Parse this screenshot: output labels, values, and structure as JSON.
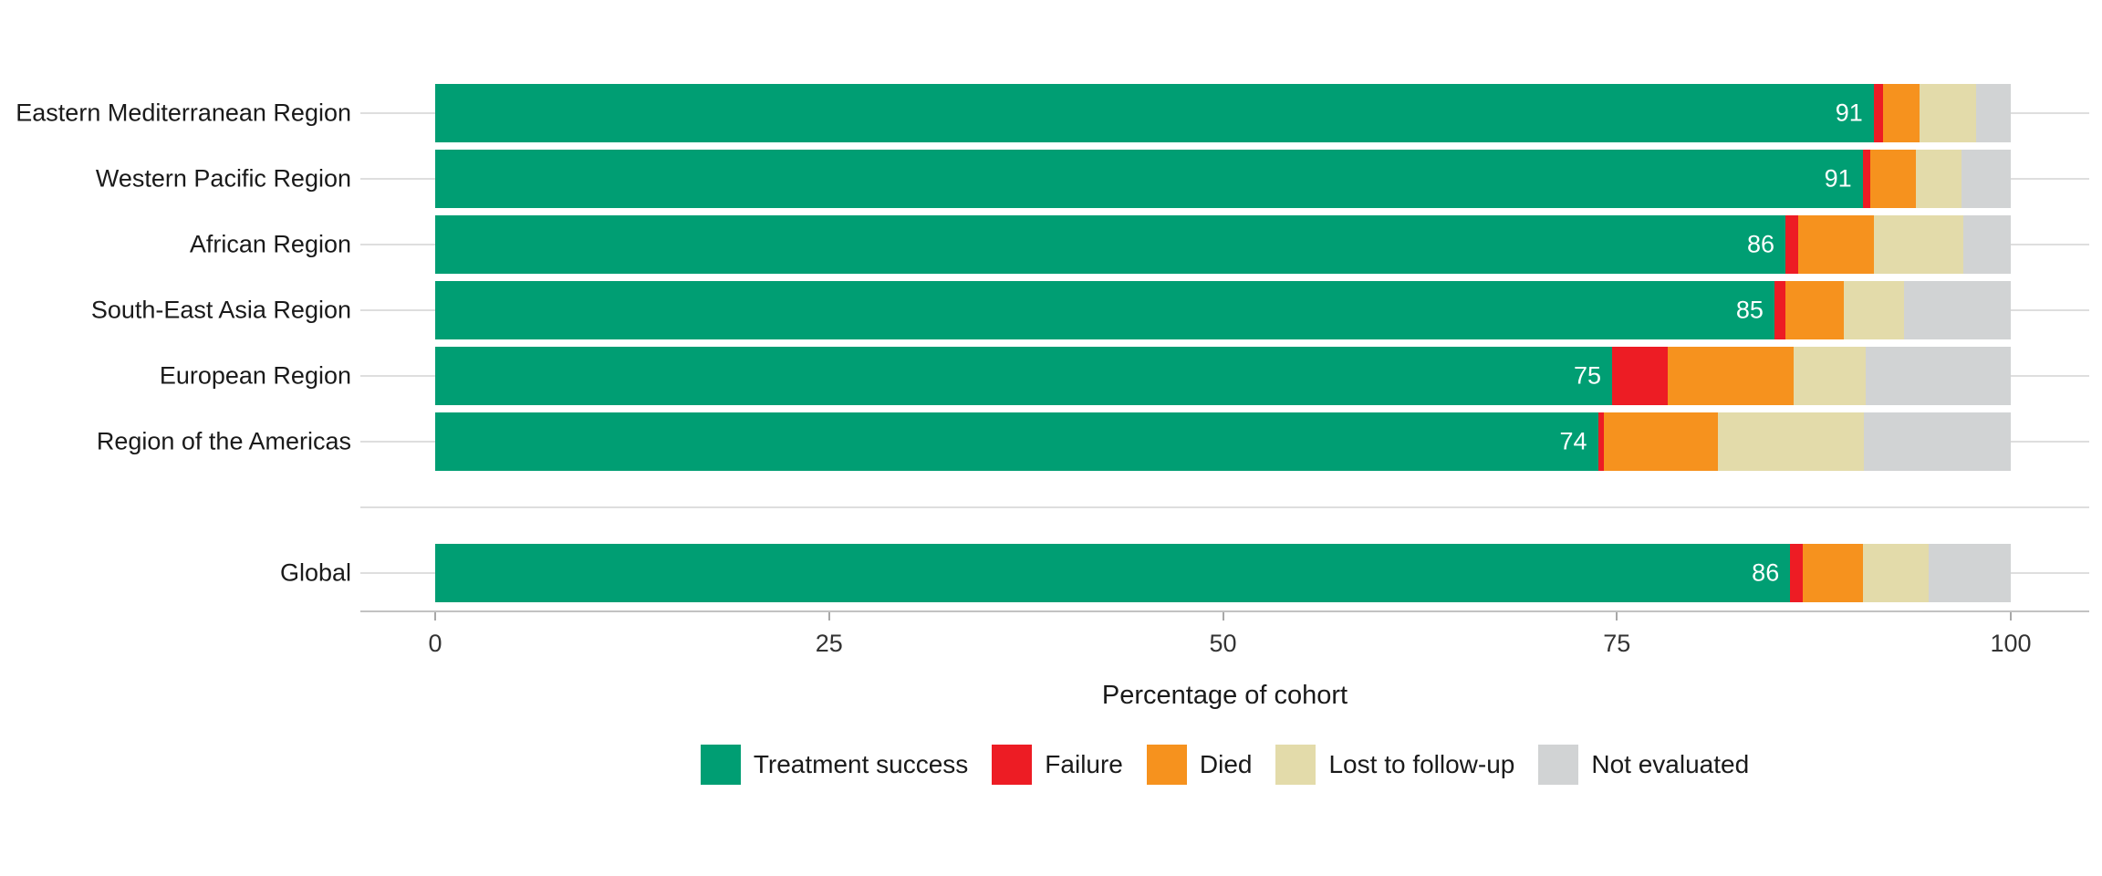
{
  "chart_data": {
    "type": "bar",
    "orientation": "horizontal",
    "stacked": true,
    "title": "",
    "xlabel": "Percentage of cohort",
    "ylabel": "",
    "xlim": [
      0,
      100
    ],
    "x_ticks": [
      "0",
      "25",
      "50",
      "75",
      "100"
    ],
    "grid": "horizontal-only",
    "legend_position": "bottom",
    "categories": [
      "Eastern Mediterranean Region",
      "Western Pacific Region",
      "African Region",
      "South-East Asia Region",
      "European Region",
      "Region of the Americas",
      "Global"
    ],
    "gap_row_after_category_index": 5,
    "series": [
      {
        "name": "Treatment success",
        "color": "#009e73",
        "values": [
          91.3,
          90.6,
          85.7,
          85.0,
          74.7,
          73.8,
          86.0
        ]
      },
      {
        "name": "Failure",
        "color": "#ed1c24",
        "values": [
          0.6,
          0.5,
          0.8,
          0.7,
          3.5,
          0.4,
          0.8
        ]
      },
      {
        "name": "Died",
        "color": "#f6921e",
        "values": [
          2.3,
          2.9,
          4.8,
          3.7,
          8.0,
          7.2,
          3.8
        ]
      },
      {
        "name": "Lost to follow-up",
        "color": "#e3dbaa",
        "values": [
          3.6,
          2.9,
          5.7,
          3.8,
          4.6,
          9.3,
          4.2
        ]
      },
      {
        "name": "Not evaluated",
        "color": "#d1d3d4",
        "values": [
          2.2,
          3.1,
          3.0,
          6.8,
          9.2,
          9.3,
          5.2
        ]
      }
    ],
    "bar_labels": [
      "91",
      "91",
      "86",
      "85",
      "75",
      "74",
      "86"
    ]
  },
  "colors": {
    "treatment_success": "#009e73",
    "failure": "#ed1c24",
    "died": "#f6921e",
    "lost_to_follow_up": "#e3dbaa",
    "not_evaluated": "#d1d3d4",
    "gridline": "#dedede",
    "axis_line": "#c2c2c2",
    "text": "#1a1a1a",
    "bar_label_text": "#ffffff"
  },
  "axis": {
    "title": "Percentage of cohort",
    "tick_labels": [
      "0",
      "25",
      "50",
      "75",
      "100"
    ]
  }
}
